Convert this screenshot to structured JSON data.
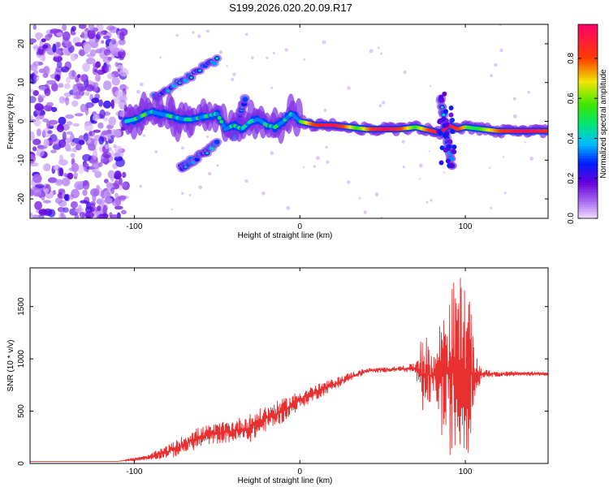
{
  "title": "S199.2026.020.20.09.R17",
  "chart_data": [
    {
      "type": "heatmap",
      "name": "spectrogram",
      "xlabel": "Height of straight line (km)",
      "ylabel": "Frequency (Hz)",
      "xlim": [
        -163,
        150
      ],
      "ylim": [
        -25,
        25
      ],
      "xticks": [
        -100,
        0,
        100
      ],
      "yticks": [
        -20,
        -10,
        0,
        10,
        20
      ],
      "colorbar": {
        "label": "Normalized spectral amplitude",
        "range": [
          0,
          0.97
        ],
        "ticks": [
          "0.0",
          "0.2",
          "0.4",
          "0.6",
          "0.8"
        ],
        "tick_values": [
          0,
          0.2,
          0.4,
          0.6,
          0.8
        ]
      },
      "noise_region_x": [
        -163,
        -105
      ],
      "ridge": [
        [
          -105,
          0
        ],
        [
          -100,
          0.5
        ],
        [
          -95,
          1.5
        ],
        [
          -90,
          2.5
        ],
        [
          -85,
          2
        ],
        [
          -80,
          1.5
        ],
        [
          -75,
          1
        ],
        [
          -70,
          0.5
        ],
        [
          -65,
          0.5
        ],
        [
          -60,
          1
        ],
        [
          -55,
          1.5
        ],
        [
          -50,
          2
        ],
        [
          -45,
          -2
        ],
        [
          -40,
          -1
        ],
        [
          -35,
          -2
        ],
        [
          -30,
          0
        ],
        [
          -25,
          0.5
        ],
        [
          -20,
          -1
        ],
        [
          -15,
          -1.5
        ],
        [
          -10,
          0
        ],
        [
          -5,
          2
        ],
        [
          0,
          0
        ],
        [
          10,
          -1
        ],
        [
          20,
          -1
        ],
        [
          30,
          -1.5
        ],
        [
          40,
          -2
        ],
        [
          50,
          -2
        ],
        [
          60,
          -2
        ],
        [
          70,
          -1.5
        ],
        [
          75,
          -2
        ],
        [
          80,
          -2.5
        ],
        [
          85,
          -3
        ],
        [
          90,
          -1
        ],
        [
          95,
          -2
        ],
        [
          100,
          -1.5
        ],
        [
          110,
          -2
        ],
        [
          120,
          -2.5
        ],
        [
          135,
          -2.5
        ],
        [
          150,
          -2.5
        ]
      ],
      "branches": [
        {
          "from": [
            -72,
            -12
          ],
          "to": [
            -50,
            -6
          ]
        },
        {
          "from": [
            -88,
            6
          ],
          "to": [
            -50,
            16
          ]
        },
        {
          "from": [
            -40,
            -4
          ],
          "to": [
            -33,
            6
          ]
        },
        {
          "from": [
            85,
            6
          ],
          "to": [
            92,
            -12
          ]
        }
      ]
    },
    {
      "type": "line",
      "name": "snr",
      "xlabel": "Height of straight line (km)",
      "ylabel": "SNR (10 * v/v)",
      "xlim": [
        -163,
        150
      ],
      "ylim": [
        0,
        1870
      ],
      "xticks": [
        -100,
        0,
        100
      ],
      "yticks": [
        0,
        500,
        1000,
        1500
      ],
      "series": [
        {
          "name": "SNR",
          "color": "#e83030",
          "envelope": [
            [
              -163,
              20,
              20
            ],
            [
              -110,
              20,
              20
            ],
            [
              -92,
              30,
              80
            ],
            [
              -75,
              60,
              220
            ],
            [
              -65,
              120,
              330
            ],
            [
              -55,
              180,
              370
            ],
            [
              -40,
              200,
              420
            ],
            [
              -30,
              200,
              480
            ],
            [
              -20,
              310,
              560
            ],
            [
              -10,
              390,
              620
            ],
            [
              0,
              520,
              700
            ],
            [
              20,
              700,
              810
            ],
            [
              30,
              780,
              870
            ],
            [
              40,
              860,
              910
            ],
            [
              60,
              880,
              930
            ],
            [
              70,
              860,
              960
            ],
            [
              73,
              330,
              1350
            ],
            [
              78,
              550,
              1150
            ],
            [
              82,
              640,
              1050
            ],
            [
              86,
              200,
              1550
            ],
            [
              90,
              80,
              1650
            ],
            [
              96,
              60,
              1850
            ],
            [
              102,
              100,
              1650
            ],
            [
              106,
              620,
              1050
            ],
            [
              110,
              820,
              900
            ],
            [
              120,
              830,
              880
            ],
            [
              150,
              840,
              880
            ]
          ]
        }
      ]
    }
  ]
}
